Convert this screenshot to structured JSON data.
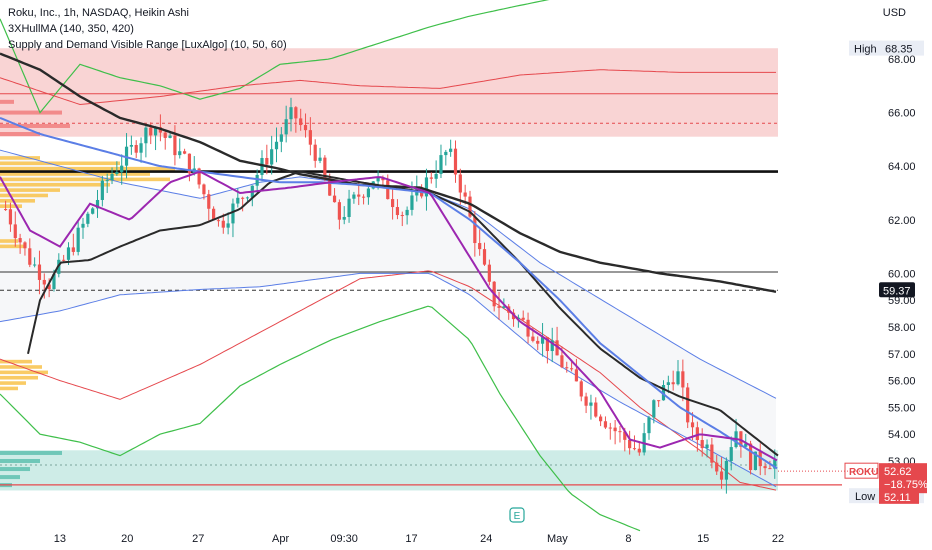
{
  "legend": {
    "line1": "Roku, Inc., 1h, NASDAQ, Heikin Ashi",
    "line2": "3XHullMA (140, 350, 420)",
    "line3": "Supply and Demand Visible Range [LuxAlgo] (10, 50, 60)"
  },
  "currency": "USD",
  "e_badge": "E",
  "chart_data": {
    "type": "candlestick",
    "symbol": "ROKU",
    "ylim": [
      50.5,
      70.2
    ],
    "y_ticks": [
      "68.00",
      "66.00",
      "64.00",
      "62.00",
      "60.00",
      "59.00",
      "58.00",
      "57.00",
      "56.00",
      "55.00",
      "54.00",
      "53.00"
    ],
    "y_tick_values": [
      68,
      66,
      64,
      62,
      60,
      59,
      58,
      57,
      56,
      55,
      54,
      53
    ],
    "x_ticks": [
      "13",
      "20",
      "27",
      "Apr",
      "09:30",
      "17",
      "24",
      "May",
      "8",
      "15",
      "22"
    ],
    "x_tick_pos": [
      0.04,
      0.13,
      0.225,
      0.335,
      0.42,
      0.51,
      0.61,
      0.705,
      0.8,
      0.9,
      1.0
    ],
    "labels": {
      "high": {
        "text": "High",
        "value": "68.35",
        "y": 68.35
      },
      "low": {
        "text": "Low",
        "value": "51.65",
        "y": 51.65
      },
      "hline": {
        "value": "59.37",
        "y": 59.37
      },
      "last": {
        "symbol": "ROKU",
        "value": "52.62",
        "change": "−18.75%",
        "y": 52.62
      },
      "support": {
        "value": "52.11",
        "y": 52.11
      }
    },
    "zones": {
      "supply": [
        65.1,
        68.4
      ],
      "demand": [
        51.9,
        53.4
      ]
    },
    "levels": {
      "upper_thick": 63.8,
      "mid_thin": 60.05,
      "dashed": 59.37,
      "supply_mid": 66.7,
      "demand_red": 52.11
    },
    "colors": {
      "up": "#26a69a",
      "down": "#ef5350",
      "supply": "#f7c6c6",
      "demand": "#b9e4dd",
      "hull_black": "#2a2a2a",
      "hull_blue": "#5b7ee6",
      "hull_purple": "#9c27b0",
      "band_green": "#3fbf4a",
      "band_red": "#e5484d",
      "volume_profile": "#f8c24a"
    }
  }
}
